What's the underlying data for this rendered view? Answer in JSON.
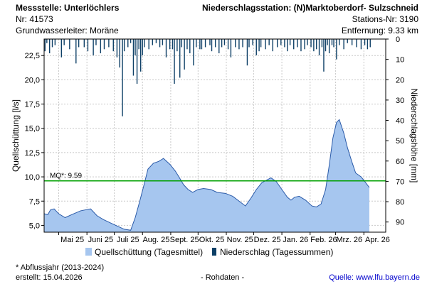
{
  "header": {
    "left_line1": "Messstelle: Unterlöchlers",
    "left_line2": "Nr: 41573",
    "left_line3": "Grundwasserleiter:   Moräne",
    "right_line1": "Niederschlagsstation: (N)Marktoberdorf- Sulzschneid",
    "right_line2": "Stations-Nr: 3190",
    "right_line3": "Entfernung: 9.33 km"
  },
  "footer": {
    "note": "* Abflussjahr (2013-2024)",
    "created": "erstellt:  15.04.2026",
    "raw": "- Rohdaten -",
    "source_label": "Quelle:",
    "source_link": "www.lfu.bayern.de"
  },
  "colors": {
    "area": "#a6c6ef",
    "area_line": "#2a5aa8",
    "precip": "#0d3f66",
    "mq_line": "#00a000",
    "grid": "#c8c8c8"
  },
  "chart_data": {
    "type": "area",
    "ylabel": "Quellschüttung [l/s]",
    "y2label": "Niederschlagshöhe [mm]",
    "ylim": [
      4.3,
      24.2
    ],
    "y2lim": [
      0,
      95
    ],
    "yticks": [
      5.0,
      7.5,
      10.0,
      12.5,
      15.0,
      17.5,
      20.0,
      22.5
    ],
    "ytick_labels": [
      "5,0",
      "7,5",
      "10,0",
      "12,5",
      "15,0",
      "17,5",
      "20,0",
      "22,5"
    ],
    "y2ticks": [
      0,
      10,
      20,
      30,
      40,
      50,
      60,
      70,
      80,
      90
    ],
    "y2tick_labels": [
      "0",
      "10",
      "20",
      "30",
      "40",
      "50",
      "60",
      "70",
      "80",
      "90"
    ],
    "xlim": [
      "2025-04-15",
      "2026-04-25"
    ],
    "xticks": [
      {
        "date": "2025-05-01",
        "label": "Mai 25"
      },
      {
        "date": "2025-06-01",
        "label": "Juni 25"
      },
      {
        "date": "2025-07-01",
        "label": "Juli 25"
      },
      {
        "date": "2025-08-01",
        "label": "Aug. 25"
      },
      {
        "date": "2025-09-01",
        "label": "Sept. 25"
      },
      {
        "date": "2025-10-01",
        "label": "Okt. 25"
      },
      {
        "date": "2025-11-01",
        "label": "Nov. 25"
      },
      {
        "date": "2025-12-01",
        "label": "Dez. 25"
      },
      {
        "date": "2026-01-01",
        "label": "Jan. 26"
      },
      {
        "date": "2026-02-01",
        "label": "Feb. 26"
      },
      {
        "date": "2026-03-01",
        "label": "Mrz. 26"
      },
      {
        "date": "2026-04-01",
        "label": "Apr. 26"
      }
    ],
    "mq": {
      "value": 9.59,
      "label": "MQ*: 9.59"
    },
    "legend": [
      {
        "label": "Quellschüttung (Tagesmittel)"
      },
      {
        "label": "Niederschlag (Tagessummen)"
      }
    ],
    "series": [
      {
        "name": "Quellschüttung (Tagesmittel)",
        "points": [
          [
            "2025-04-15",
            6.2
          ],
          [
            "2025-04-19",
            6.1
          ],
          [
            "2025-04-22",
            6.6
          ],
          [
            "2025-04-26",
            6.7
          ],
          [
            "2025-05-01",
            6.2
          ],
          [
            "2025-05-08",
            5.8
          ],
          [
            "2025-05-15",
            6.1
          ],
          [
            "2025-05-25",
            6.5
          ],
          [
            "2025-06-05",
            6.7
          ],
          [
            "2025-06-12",
            6.0
          ],
          [
            "2025-06-19",
            5.6
          ],
          [
            "2025-06-28",
            5.2
          ],
          [
            "2025-07-05",
            4.9
          ],
          [
            "2025-07-12",
            4.6
          ],
          [
            "2025-07-19",
            4.5
          ],
          [
            "2025-07-24",
            5.8
          ],
          [
            "2025-07-29",
            7.5
          ],
          [
            "2025-08-03",
            9.3
          ],
          [
            "2025-08-07",
            10.8
          ],
          [
            "2025-08-13",
            11.4
          ],
          [
            "2025-08-19",
            11.6
          ],
          [
            "2025-08-24",
            11.9
          ],
          [
            "2025-08-31",
            11.3
          ],
          [
            "2025-09-06",
            10.6
          ],
          [
            "2025-09-10",
            10.0
          ],
          [
            "2025-09-15",
            9.2
          ],
          [
            "2025-09-20",
            8.7
          ],
          [
            "2025-09-25",
            8.4
          ],
          [
            "2025-10-01",
            8.7
          ],
          [
            "2025-10-07",
            8.8
          ],
          [
            "2025-10-15",
            8.7
          ],
          [
            "2025-10-22",
            8.4
          ],
          [
            "2025-10-31",
            8.3
          ],
          [
            "2025-11-08",
            8.0
          ],
          [
            "2025-11-15",
            7.5
          ],
          [
            "2025-11-22",
            7.0
          ],
          [
            "2025-11-28",
            7.8
          ],
          [
            "2025-12-04",
            8.7
          ],
          [
            "2025-12-10",
            9.4
          ],
          [
            "2025-12-16",
            9.7
          ],
          [
            "2025-12-20",
            9.9
          ],
          [
            "2025-12-26",
            9.5
          ],
          [
            "2026-01-01",
            8.7
          ],
          [
            "2026-01-07",
            7.9
          ],
          [
            "2026-01-11",
            7.6
          ],
          [
            "2026-01-15",
            7.9
          ],
          [
            "2026-01-20",
            8.0
          ],
          [
            "2026-01-27",
            7.6
          ],
          [
            "2026-02-03",
            7.0
          ],
          [
            "2026-02-08",
            6.9
          ],
          [
            "2026-02-13",
            7.2
          ],
          [
            "2026-02-18",
            8.7
          ],
          [
            "2026-02-22",
            11.2
          ],
          [
            "2026-02-26",
            14.0
          ],
          [
            "2026-03-02",
            15.6
          ],
          [
            "2026-03-05",
            15.9
          ],
          [
            "2026-03-10",
            14.5
          ],
          [
            "2026-03-14",
            13.0
          ],
          [
            "2026-03-19",
            11.5
          ],
          [
            "2026-03-23",
            10.4
          ],
          [
            "2026-03-29",
            10.0
          ],
          [
            "2026-04-03",
            9.4
          ],
          [
            "2026-04-07",
            8.9
          ]
        ]
      },
      {
        "name": "Niederschlag (Tagessummen)",
        "points": [
          [
            "2025-04-16",
            6
          ],
          [
            "2025-04-18",
            2
          ],
          [
            "2025-04-21",
            7
          ],
          [
            "2025-04-24",
            4
          ],
          [
            "2025-04-27",
            3
          ],
          [
            "2025-05-04",
            9
          ],
          [
            "2025-05-07",
            3
          ],
          [
            "2025-05-13",
            5
          ],
          [
            "2025-05-20",
            12
          ],
          [
            "2025-05-23",
            4
          ],
          [
            "2025-05-29",
            4
          ],
          [
            "2025-06-02",
            6
          ],
          [
            "2025-06-08",
            8
          ],
          [
            "2025-06-11",
            3
          ],
          [
            "2025-06-16",
            7
          ],
          [
            "2025-06-20",
            5
          ],
          [
            "2025-06-25",
            4
          ],
          [
            "2025-06-30",
            6
          ],
          [
            "2025-07-04",
            9
          ],
          [
            "2025-07-07",
            14
          ],
          [
            "2025-07-10",
            38
          ],
          [
            "2025-07-12",
            6
          ],
          [
            "2025-07-16",
            4
          ],
          [
            "2025-07-19",
            2
          ],
          [
            "2025-07-22",
            18
          ],
          [
            "2025-07-24",
            8
          ],
          [
            "2025-07-26",
            22
          ],
          [
            "2025-07-28",
            5
          ],
          [
            "2025-07-30",
            16
          ],
          [
            "2025-08-01",
            8
          ],
          [
            "2025-08-03",
            4
          ],
          [
            "2025-08-08",
            5
          ],
          [
            "2025-08-12",
            3
          ],
          [
            "2025-08-16",
            2
          ],
          [
            "2025-08-20",
            4
          ],
          [
            "2025-08-23",
            3
          ],
          [
            "2025-08-27",
            9
          ],
          [
            "2025-08-31",
            5
          ],
          [
            "2025-09-03",
            5
          ],
          [
            "2025-09-05",
            22
          ],
          [
            "2025-09-08",
            6
          ],
          [
            "2025-09-11",
            19
          ],
          [
            "2025-09-13",
            4
          ],
          [
            "2025-09-16",
            15
          ],
          [
            "2025-09-19",
            5
          ],
          [
            "2025-09-22",
            7
          ],
          [
            "2025-09-26",
            13
          ],
          [
            "2025-09-29",
            4
          ],
          [
            "2025-10-03",
            5
          ],
          [
            "2025-10-05",
            5
          ],
          [
            "2025-10-09",
            4
          ],
          [
            "2025-10-14",
            3
          ],
          [
            "2025-10-16",
            6
          ],
          [
            "2025-10-20",
            4
          ],
          [
            "2025-10-24",
            7
          ],
          [
            "2025-10-27",
            4
          ],
          [
            "2025-10-30",
            3
          ],
          [
            "2025-11-03",
            5
          ],
          [
            "2025-11-06",
            9
          ],
          [
            "2025-11-11",
            4
          ],
          [
            "2025-11-15",
            5
          ],
          [
            "2025-11-19",
            4
          ],
          [
            "2025-11-24",
            13
          ],
          [
            "2025-11-26",
            4
          ],
          [
            "2025-11-30",
            3
          ],
          [
            "2025-12-04",
            8
          ],
          [
            "2025-12-07",
            6
          ],
          [
            "2025-12-09",
            4
          ],
          [
            "2025-12-14",
            5
          ],
          [
            "2025-12-18",
            3
          ],
          [
            "2025-12-22",
            6
          ],
          [
            "2025-12-27",
            4
          ],
          [
            "2025-12-31",
            3
          ],
          [
            "2026-01-04",
            4
          ],
          [
            "2026-01-07",
            6
          ],
          [
            "2026-01-10",
            3
          ],
          [
            "2026-01-14",
            5
          ],
          [
            "2026-01-18",
            4
          ],
          [
            "2026-01-22",
            6
          ],
          [
            "2026-01-26",
            5
          ],
          [
            "2026-01-29",
            3
          ],
          [
            "2026-02-02",
            4
          ],
          [
            "2026-02-05",
            6
          ],
          [
            "2026-02-08",
            5
          ],
          [
            "2026-02-11",
            8
          ],
          [
            "2026-02-14",
            4
          ],
          [
            "2026-02-16",
            16
          ],
          [
            "2026-02-18",
            6
          ],
          [
            "2026-02-20",
            3
          ],
          [
            "2026-02-22",
            7
          ],
          [
            "2026-02-25",
            3
          ],
          [
            "2026-02-27",
            4
          ],
          [
            "2026-03-02",
            10
          ],
          [
            "2026-03-05",
            3
          ],
          [
            "2026-03-10",
            5
          ],
          [
            "2026-03-14",
            2
          ],
          [
            "2026-03-19",
            3
          ],
          [
            "2026-03-24",
            4
          ],
          [
            "2026-03-29",
            5
          ],
          [
            "2026-04-02",
            3
          ],
          [
            "2026-04-05",
            5
          ],
          [
            "2026-04-08",
            4
          ]
        ]
      }
    ]
  }
}
